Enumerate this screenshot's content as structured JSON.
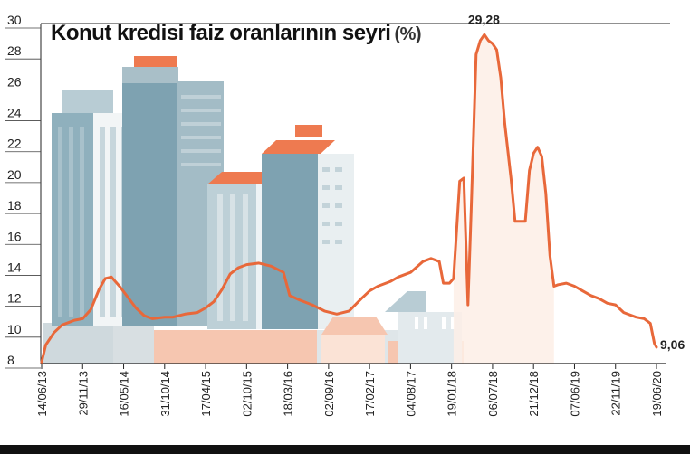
{
  "chart_data": {
    "type": "line",
    "title": "Konut kredisi faiz oranlarının seyri",
    "unit": "(%)",
    "ylim": [
      8,
      30
    ],
    "yticks": [
      "8",
      "10",
      "12",
      "14",
      "16",
      "18",
      "20",
      "22",
      "24",
      "26",
      "28",
      "30"
    ],
    "categories": [
      "14/06/13",
      "29/11/13",
      "16/05/14",
      "31/10/14",
      "17/04/15",
      "02/10/15",
      "18/03/16",
      "02/09/16",
      "17/02/17",
      "04/08/17",
      "19/01/18",
      "06/07/18",
      "21/12/18",
      "07/06/19",
      "22/11/19",
      "19/06/20"
    ],
    "series": [
      {
        "color": "#e8683a",
        "points": [
          [
            0,
            8.1
          ],
          [
            0.1,
            9.2
          ],
          [
            0.3,
            10.0
          ],
          [
            0.5,
            10.5
          ],
          [
            0.8,
            10.8
          ],
          [
            1.0,
            10.9
          ],
          [
            1.2,
            11.5
          ],
          [
            1.4,
            12.8
          ],
          [
            1.55,
            13.5
          ],
          [
            1.7,
            13.6
          ],
          [
            1.9,
            13.0
          ],
          [
            2.1,
            12.3
          ],
          [
            2.3,
            11.6
          ],
          [
            2.5,
            11.1
          ],
          [
            2.7,
            10.9
          ],
          [
            3.0,
            11.0
          ],
          [
            3.2,
            11.0
          ],
          [
            3.5,
            11.2
          ],
          [
            3.8,
            11.3
          ],
          [
            4.0,
            11.6
          ],
          [
            4.2,
            12.0
          ],
          [
            4.4,
            12.8
          ],
          [
            4.6,
            13.8
          ],
          [
            4.8,
            14.2
          ],
          [
            5.0,
            14.4
          ],
          [
            5.3,
            14.5
          ],
          [
            5.6,
            14.3
          ],
          [
            5.9,
            13.9
          ],
          [
            6.05,
            12.4
          ],
          [
            6.3,
            12.1
          ],
          [
            6.6,
            11.8
          ],
          [
            6.9,
            11.4
          ],
          [
            7.2,
            11.2
          ],
          [
            7.5,
            11.4
          ],
          [
            7.8,
            12.2
          ],
          [
            8.0,
            12.7
          ],
          [
            8.2,
            13.0
          ],
          [
            8.5,
            13.3
          ],
          [
            8.7,
            13.6
          ],
          [
            9.0,
            13.9
          ],
          [
            9.3,
            14.6
          ],
          [
            9.5,
            14.8
          ],
          [
            9.7,
            14.6
          ],
          [
            9.8,
            13.2
          ],
          [
            9.95,
            13.2
          ],
          [
            10.05,
            13.5
          ],
          [
            10.2,
            19.8
          ],
          [
            10.3,
            20.0
          ],
          [
            10.4,
            11.8
          ],
          [
            10.48,
            18.0
          ],
          [
            10.6,
            28.0
          ],
          [
            10.7,
            28.9
          ],
          [
            10.8,
            29.28
          ],
          [
            10.9,
            28.9
          ],
          [
            11.0,
            28.7
          ],
          [
            11.1,
            28.3
          ],
          [
            11.2,
            26.5
          ],
          [
            11.3,
            23.5
          ],
          [
            11.45,
            20.0
          ],
          [
            11.55,
            17.2
          ],
          [
            11.8,
            17.2
          ],
          [
            11.9,
            20.5
          ],
          [
            12.0,
            21.6
          ],
          [
            12.1,
            22.0
          ],
          [
            12.2,
            21.4
          ],
          [
            12.3,
            19.0
          ],
          [
            12.4,
            15.0
          ],
          [
            12.5,
            13.0
          ],
          [
            12.6,
            13.1
          ],
          [
            12.8,
            13.2
          ],
          [
            13.0,
            13.0
          ],
          [
            13.2,
            12.7
          ],
          [
            13.4,
            12.4
          ],
          [
            13.6,
            12.2
          ],
          [
            13.8,
            11.9
          ],
          [
            14.0,
            11.8
          ],
          [
            14.2,
            11.3
          ],
          [
            14.5,
            11.0
          ],
          [
            14.7,
            10.9
          ],
          [
            14.85,
            10.6
          ],
          [
            14.95,
            9.3
          ],
          [
            15.0,
            9.06
          ]
        ]
      }
    ],
    "annotations": [
      {
        "text": "29,28",
        "x": 10.8,
        "y": 29.28
      },
      {
        "text": "9,06",
        "x": 15.0,
        "y": 9.06
      }
    ],
    "grid": false
  }
}
